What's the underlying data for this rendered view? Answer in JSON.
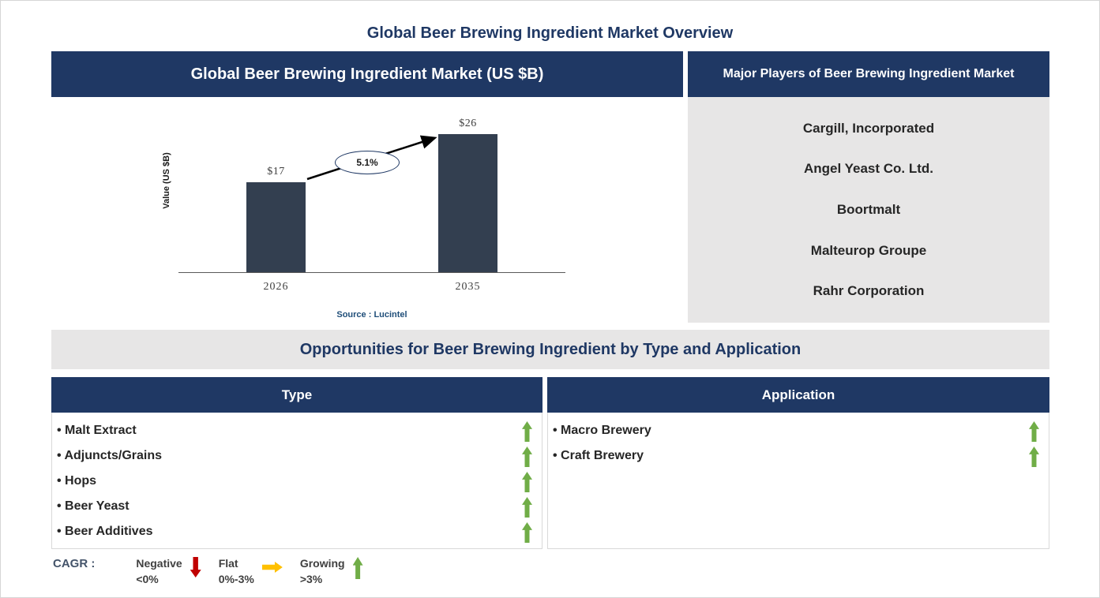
{
  "page": {
    "title": "Global Beer Brewing Ingredient Market Overview"
  },
  "market_panel": {
    "header": "Global Beer Brewing Ingredient Market (US $B)",
    "source": "Source : Lucintel"
  },
  "chart_data": {
    "type": "bar",
    "categories": [
      "2026",
      "2035"
    ],
    "values": [
      17,
      26
    ],
    "value_labels": [
      "$17",
      "$26"
    ],
    "cagr_label": "5.1%",
    "title": "Global Beer Brewing Ingredient Market (US $B)",
    "xlabel": "",
    "ylabel": "Value (US $B)",
    "ylim": [
      0,
      30
    ],
    "grid": false,
    "annotation": "CAGR 5.1% from 2026 to 2035"
  },
  "players_panel": {
    "header": "Major Players of Beer Brewing Ingredient Market",
    "companies": [
      "Cargill, Incorporated",
      "Angel Yeast Co. Ltd.",
      "Boortmalt",
      "Malteurop Groupe",
      "Rahr Corporation"
    ]
  },
  "opportunities": {
    "title": "Opportunities for Beer Brewing Ingredient by Type and Application",
    "type": {
      "header": "Type",
      "items": [
        "Malt Extract",
        "Adjuncts/Grains",
        "Hops",
        "Beer Yeast",
        "Beer Additives"
      ],
      "trends": [
        "growing",
        "growing",
        "growing",
        "growing",
        "growing"
      ]
    },
    "application": {
      "header": "Application",
      "items": [
        "Macro Brewery",
        "Craft Brewery"
      ],
      "trends": [
        "growing",
        "growing"
      ]
    }
  },
  "legend": {
    "label": "CAGR  :",
    "items": [
      {
        "name": "Negative",
        "range": "<0%",
        "trend": "negative"
      },
      {
        "name": "Flat",
        "range": "0%-3%",
        "trend": "flat"
      },
      {
        "name": "Growing",
        "range": ">3%",
        "trend": "growing"
      }
    ]
  },
  "colors": {
    "navy": "#1F3864",
    "bar": "#333F50",
    "gray": "#E7E6E6",
    "green": "#70AD47",
    "red": "#C00000",
    "yellow": "#FFC000",
    "source_blue": "#1F4E79"
  }
}
